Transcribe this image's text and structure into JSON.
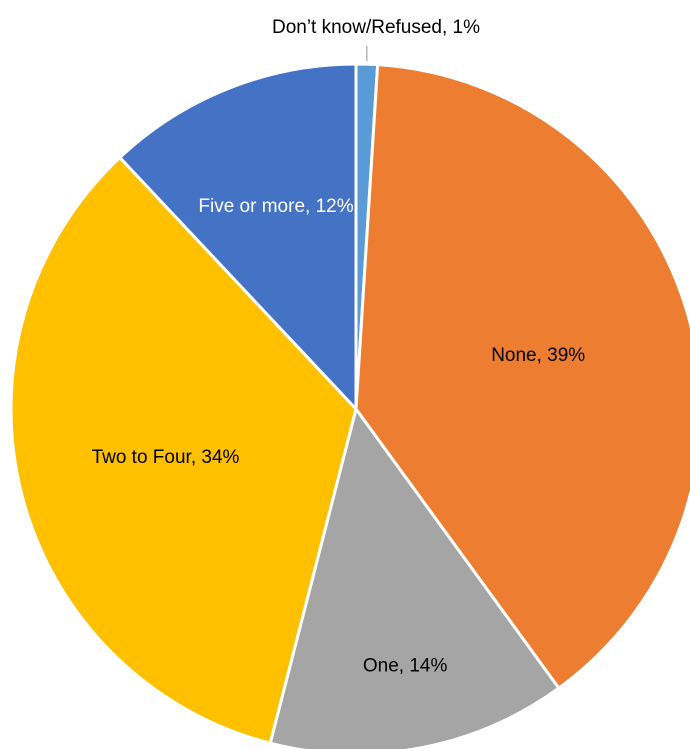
{
  "chart_data": {
    "type": "pie",
    "title": "",
    "start_angle_deg": 0,
    "direction": "clockwise",
    "slices": [
      {
        "label": "Don’t know/Refused",
        "value": 1,
        "display": "Don’t know/Refused, 1%",
        "color": "#5b9bd5",
        "label_color": "#000000"
      },
      {
        "label": "None",
        "value": 39,
        "display": "None, 39%",
        "color": "#ed7d31",
        "label_color": "#000000"
      },
      {
        "label": "One",
        "value": 14,
        "display": "One, 14%",
        "color": "#a5a5a5",
        "label_color": "#000000"
      },
      {
        "label": "Two to Four",
        "value": 34,
        "display": "Two to Four, 34%",
        "color": "#ffc000",
        "label_color": "#000000"
      },
      {
        "label": "Five or more",
        "value": 12,
        "display": "Five or more, 12%",
        "color": "#4472c4",
        "label_color": "#ffffff"
      }
    ],
    "legend": "none",
    "label_position": "inside, with leader line for smallest slice"
  }
}
